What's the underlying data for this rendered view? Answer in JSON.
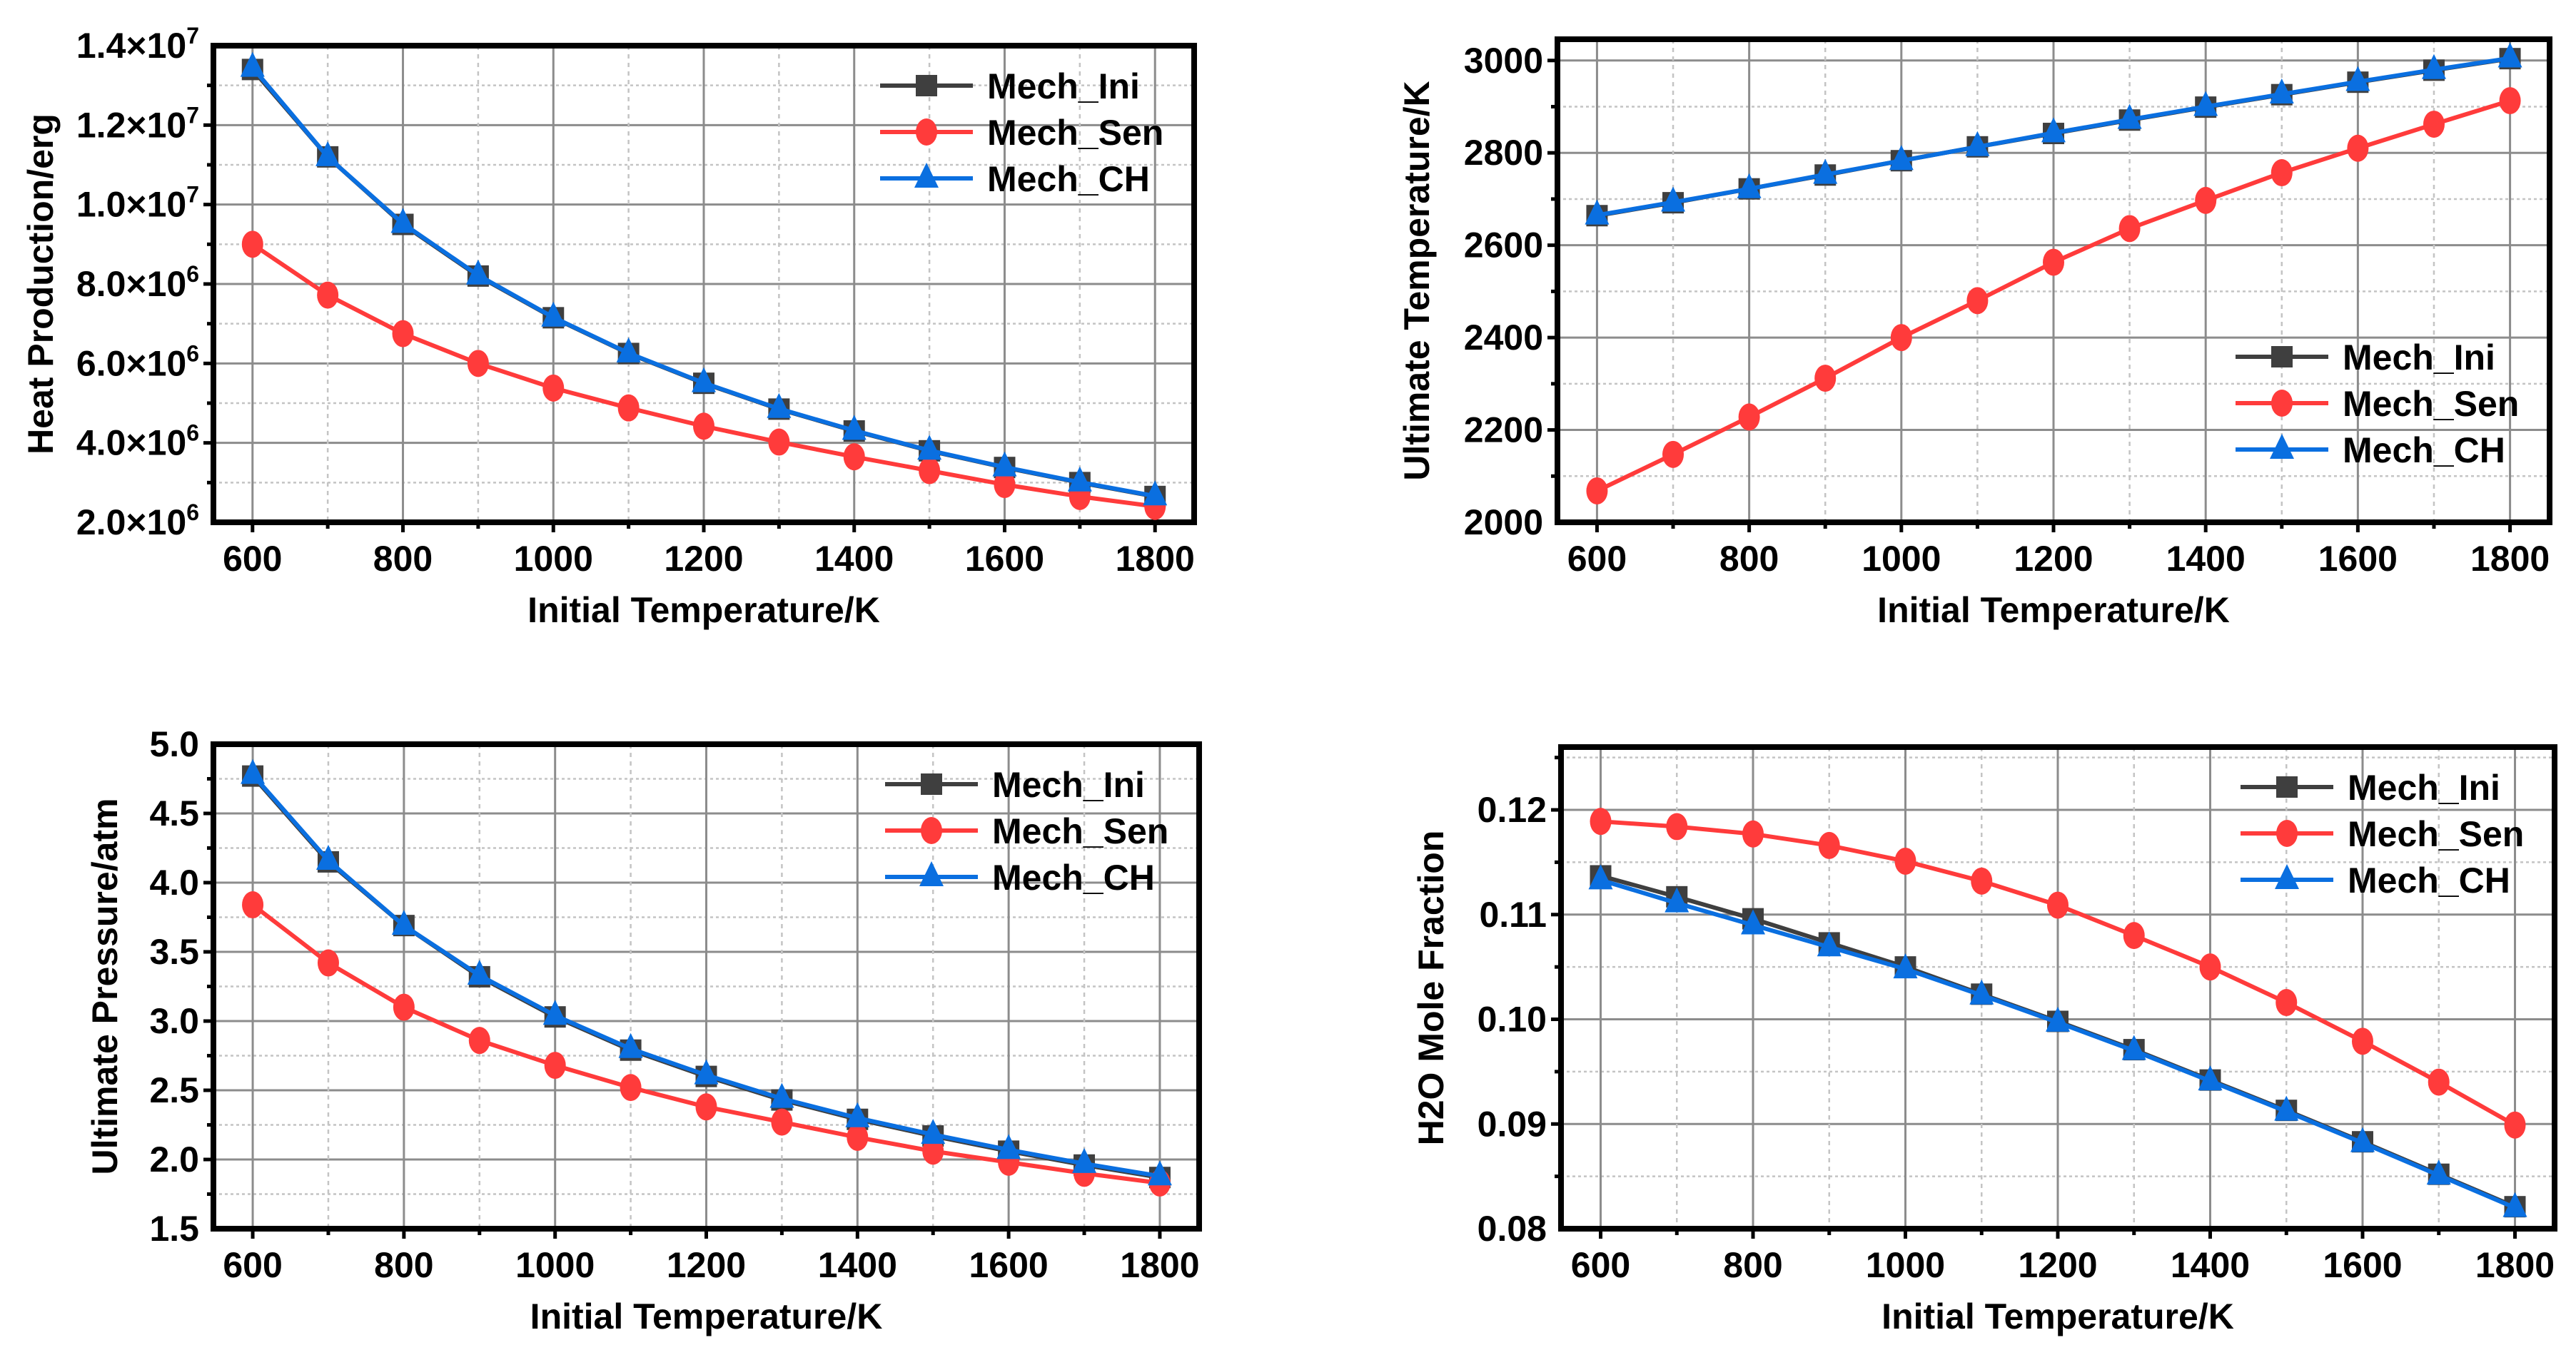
{
  "colors": {
    "Mech_Ini": "#3f3f3f",
    "Mech_Sen": "#ff3b3b",
    "Mech_CH": "#0a6fe0"
  },
  "chart_data": [
    {
      "type": "line",
      "xlabel": "Initial Temperature/K",
      "ylabel": "Heat Production/erg",
      "xlim": [
        548,
        1852
      ],
      "ylim": [
        2000000,
        14000000
      ],
      "x": [
        600,
        700,
        800,
        900,
        1000,
        1100,
        1200,
        1300,
        1400,
        1500,
        1600,
        1700,
        1800
      ],
      "x_ticks": [
        600,
        800,
        1000,
        1200,
        1400,
        1600,
        1800
      ],
      "x_tick_labels": [
        "600",
        "800",
        "1000",
        "1200",
        "1400",
        "1600",
        "1800"
      ],
      "y_ticks": [
        2000000,
        4000000,
        6000000,
        8000000,
        10000000,
        12000000,
        14000000
      ],
      "y_tick_labels": [
        {
          "base": "2.0×10",
          "exp": "6"
        },
        {
          "base": "4.0×10",
          "exp": "6"
        },
        {
          "base": "6.0×10",
          "exp": "6"
        },
        {
          "base": "8.0×10",
          "exp": "6"
        },
        {
          "base": "1.0×10",
          "exp": "7"
        },
        {
          "base": "1.2×10",
          "exp": "7"
        },
        {
          "base": "1.4×10",
          "exp": "7"
        }
      ],
      "y_minor_step": 1000000,
      "legend_position": "top-right",
      "series": [
        {
          "name": "Mech_Ini",
          "marker": "square",
          "values": [
            13400000,
            11200000,
            9500000,
            8200000,
            7150000,
            6250000,
            5500000,
            4850000,
            4300000,
            3800000,
            3380000,
            3000000,
            2650000
          ]
        },
        {
          "name": "Mech_Sen",
          "marker": "circle",
          "values": [
            9000000,
            7720000,
            6750000,
            6000000,
            5380000,
            4880000,
            4420000,
            4020000,
            3650000,
            3300000,
            2950000,
            2650000,
            2400000
          ]
        },
        {
          "name": "Mech_CH",
          "marker": "triangle",
          "values": [
            13450000,
            11200000,
            9520000,
            8220000,
            7160000,
            6260000,
            5510000,
            4860000,
            4310000,
            3810000,
            3390000,
            3010000,
            2660000
          ]
        }
      ]
    },
    {
      "type": "line",
      "xlabel": "Initial Temperature/K",
      "ylabel": "Ultimate Temperature/K",
      "xlim": [
        548,
        1852
      ],
      "ylim": [
        2000,
        3046
      ],
      "x": [
        600,
        700,
        800,
        900,
        1000,
        1100,
        1200,
        1300,
        1400,
        1500,
        1600,
        1700,
        1800
      ],
      "x_ticks": [
        600,
        800,
        1000,
        1200,
        1400,
        1600,
        1800
      ],
      "x_tick_labels": [
        "600",
        "800",
        "1000",
        "1200",
        "1400",
        "1600",
        "1800"
      ],
      "y_ticks": [
        2000,
        2200,
        2400,
        2600,
        2800,
        3000
      ],
      "y_tick_labels": [
        {
          "base": "2000"
        },
        {
          "base": "2200"
        },
        {
          "base": "2400"
        },
        {
          "base": "2600"
        },
        {
          "base": "2800"
        },
        {
          "base": "3000"
        }
      ],
      "y_minor_step": 100,
      "legend_position": "bottom-right",
      "series": [
        {
          "name": "Mech_Ini",
          "marker": "square",
          "values": [
            2664,
            2692,
            2722,
            2752,
            2783,
            2813,
            2842,
            2871,
            2899,
            2926,
            2953,
            2979,
            3004
          ]
        },
        {
          "name": "Mech_Sen",
          "marker": "circle",
          "values": [
            2068,
            2147,
            2228,
            2312,
            2400,
            2480,
            2563,
            2636,
            2697,
            2757,
            2810,
            2862,
            2913
          ]
        },
        {
          "name": "Mech_CH",
          "marker": "triangle",
          "values": [
            2665,
            2693,
            2722,
            2753,
            2783,
            2813,
            2843,
            2872,
            2900,
            2927,
            2954,
            2980,
            3005
          ]
        }
      ]
    },
    {
      "type": "line",
      "xlabel": "Initial Temperature/K",
      "ylabel": "Ultimate Pressure/atm",
      "xlim": [
        548,
        1852
      ],
      "ylim": [
        1.5,
        5.0
      ],
      "x": [
        600,
        700,
        800,
        900,
        1000,
        1100,
        1200,
        1300,
        1400,
        1500,
        1600,
        1700,
        1800
      ],
      "x_ticks": [
        600,
        800,
        1000,
        1200,
        1400,
        1600,
        1800
      ],
      "x_tick_labels": [
        "600",
        "800",
        "1000",
        "1200",
        "1400",
        "1600",
        "1800"
      ],
      "y_ticks": [
        1.5,
        2.0,
        2.5,
        3.0,
        3.5,
        4.0,
        4.5,
        5.0
      ],
      "y_tick_labels": [
        {
          "base": "1.5"
        },
        {
          "base": "2.0"
        },
        {
          "base": "2.5"
        },
        {
          "base": "3.0"
        },
        {
          "base": "3.5"
        },
        {
          "base": "4.0"
        },
        {
          "base": "4.5"
        },
        {
          "base": "5.0"
        }
      ],
      "y_minor_step": 0.25,
      "legend_position": "top-right",
      "series": [
        {
          "name": "Mech_Ini",
          "marker": "square",
          "values": [
            4.77,
            4.15,
            3.69,
            3.32,
            3.03,
            2.79,
            2.6,
            2.43,
            2.29,
            2.17,
            2.06,
            1.96,
            1.87
          ]
        },
        {
          "name": "Mech_Sen",
          "marker": "circle",
          "values": [
            3.84,
            3.42,
            3.1,
            2.86,
            2.68,
            2.52,
            2.38,
            2.27,
            2.16,
            2.06,
            1.98,
            1.9,
            1.83
          ]
        },
        {
          "name": "Mech_CH",
          "marker": "triangle",
          "values": [
            4.78,
            4.16,
            3.69,
            3.33,
            3.04,
            2.8,
            2.61,
            2.44,
            2.3,
            2.18,
            2.07,
            1.97,
            1.88
          ]
        }
      ]
    },
    {
      "type": "line",
      "xlabel": "Initial Temperature/K",
      "ylabel": "H2O Mole Fraction",
      "xlim": [
        548,
        1852
      ],
      "ylim": [
        0.08,
        0.126
      ],
      "x": [
        600,
        700,
        800,
        900,
        1000,
        1100,
        1200,
        1300,
        1400,
        1500,
        1600,
        1700,
        1800
      ],
      "x_ticks": [
        600,
        800,
        1000,
        1200,
        1400,
        1600,
        1800
      ],
      "x_tick_labels": [
        "600",
        "800",
        "1000",
        "1200",
        "1400",
        "1600",
        "1800"
      ],
      "y_ticks": [
        0.08,
        0.09,
        0.1,
        0.11,
        0.12
      ],
      "y_tick_labels": [
        {
          "base": "0.08"
        },
        {
          "base": "0.09"
        },
        {
          "base": "0.10"
        },
        {
          "base": "0.11"
        },
        {
          "base": "0.12"
        }
      ],
      "y_minor_step": 0.005,
      "legend_position": "top-right",
      "series": [
        {
          "name": "Mech_Ini",
          "marker": "square",
          "values": [
            0.1137,
            0.1117,
            0.1096,
            0.1073,
            0.105,
            0.1024,
            0.0998,
            0.0971,
            0.0942,
            0.0913,
            0.0883,
            0.0852,
            0.0821
          ]
        },
        {
          "name": "Mech_Sen",
          "marker": "circle",
          "values": [
            0.1189,
            0.1184,
            0.1177,
            0.1166,
            0.1151,
            0.1132,
            0.1109,
            0.108,
            0.105,
            0.1016,
            0.0979,
            0.094,
            0.0899
          ]
        },
        {
          "name": "Mech_CH",
          "marker": "triangle",
          "values": [
            0.1133,
            0.1111,
            0.109,
            0.1069,
            0.1048,
            0.1023,
            0.0997,
            0.097,
            0.0941,
            0.0912,
            0.0882,
            0.0851,
            0.082
          ]
        }
      ]
    }
  ]
}
